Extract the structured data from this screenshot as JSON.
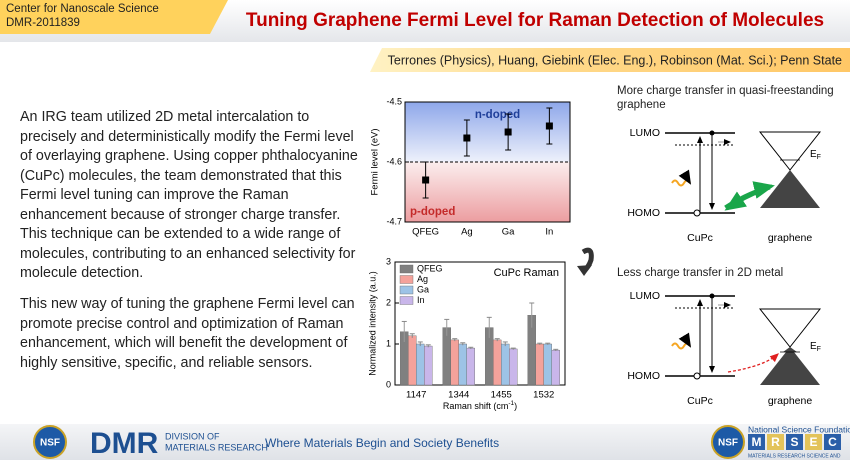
{
  "header": {
    "center": "Center for Nanoscale Science",
    "award": "DMR-2011839",
    "title": "Tuning Graphene Fermi Level for Raman Detection of Molecules"
  },
  "authors": "Terrones (Physics), Huang, Giebink (Elec. Eng.), Robinson (Mat. Sci.);  Penn State",
  "body": [
    "An IRG team utilized 2D metal intercalation to precisely and deterministically modify the Fermi level of overlaying graphene. Using copper phthalocyanine (CuPc) molecules, the team demonstrated that this Fermi level tuning can improve the Raman enhancement because of stronger charge transfer. This technique can be extended to a wide range of molecules, contributing to an enhanced selectivity for molecule detection.",
    "This new way of tuning the graphene Fermi level can promote precise control and optimization of Raman enhancement, which will benefit the development of highly sensitive, specific, and reliable sensors."
  ],
  "chart_data": [
    {
      "type": "point",
      "y_label": "Fermi level (eV)",
      "categories": [
        "QFEG",
        "Ag",
        "Ga",
        "In"
      ],
      "values": [
        -4.63,
        -4.56,
        -4.55,
        -4.54
      ],
      "errors": [
        0.03,
        0.03,
        0.03,
        0.03
      ],
      "color": "#000000",
      "ylim": [
        -4.7,
        -4.5
      ],
      "yticks": [
        -4.7,
        -4.6,
        -4.5
      ],
      "reference_line": -4.6,
      "annotations": [
        "n-doped",
        "p-doped"
      ]
    },
    {
      "type": "bar",
      "title": "CuPc Raman",
      "y_label": "Normalized intensity (a.u.)",
      "x_label": "Raman shift (cm",
      "x_label_sup": "-1",
      "x_label_end": ")",
      "categories": [
        "1147",
        "1344",
        "1455",
        "1532"
      ],
      "series": [
        {
          "name": "QFEG",
          "color": "#808080",
          "values": [
            1.3,
            1.4,
            1.4,
            1.7
          ],
          "errors": [
            0.25,
            0.2,
            0.25,
            0.3
          ]
        },
        {
          "name": "Ag",
          "color": "#f4a29b",
          "values": [
            1.2,
            1.1,
            1.1,
            1.0
          ],
          "errors": [
            0.05,
            0.03,
            0.03,
            0.02
          ]
        },
        {
          "name": "Ga",
          "color": "#9dc3e6",
          "values": [
            1.0,
            1.0,
            1.0,
            1.0
          ],
          "errors": [
            0.05,
            0.03,
            0.05,
            0.02
          ]
        },
        {
          "name": "In",
          "color": "#c9b6ea",
          "values": [
            0.95,
            0.9,
            0.88,
            0.85
          ],
          "errors": [
            0.03,
            0.02,
            0.02,
            0.02
          ]
        }
      ],
      "ylim": [
        0,
        3
      ],
      "yticks": [
        0,
        1,
        2,
        3
      ],
      "legend": "upper-left"
    }
  ],
  "diagrams": [
    {
      "title": "More charge transfer in quasi-freestanding graphene",
      "lumo": "LUMO",
      "homo": "HOMO",
      "molecule": "CuPc",
      "graphene": "graphene",
      "ef": "E",
      "ef_sub": "F"
    },
    {
      "title": "Less charge transfer in 2D metal",
      "lumo": "LUMO",
      "homo": "HOMO",
      "molecule": "CuPc",
      "graphene": "graphene",
      "ef": "E",
      "ef_sub": "F"
    }
  ],
  "footer": {
    "nsf": "NSF",
    "dmr": "DMR",
    "division": "DIVISION OF",
    "division2": "MATERIALS RESEARCH",
    "tagline": "Where Materials Begin and Society Benefits",
    "foundation": "National Science Foundation",
    "mrsec": [
      "M",
      "R",
      "S",
      "E",
      "C"
    ],
    "mrsec_sub": "MATERIALS RESEARCH SCIENCE AND"
  }
}
